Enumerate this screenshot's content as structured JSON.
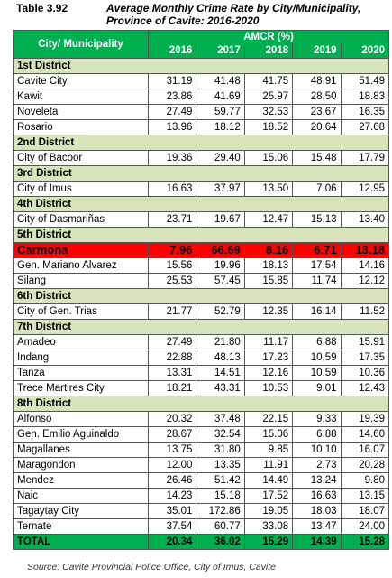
{
  "caption": {
    "number": "Table 3.92",
    "title": "Average Monthly Crime Rate by City/Municipality, Province of Cavite: 2016-2020"
  },
  "table": {
    "header": {
      "name": "City/ Municipality",
      "group": "AMCR (%)",
      "years": [
        "2016",
        "2017",
        "2018",
        "2019",
        "2020"
      ]
    },
    "rows": [
      {
        "label": "1st District"
      },
      {
        "label": "Cavite City",
        "values": [
          "31.19",
          "41.48",
          "41.75",
          "48.91",
          "51.49"
        ]
      },
      {
        "label": "Kawit",
        "values": [
          "23.86",
          "41.69",
          "25.97",
          "28.50",
          "18.83"
        ]
      },
      {
        "label": "Noveleta",
        "values": [
          "27.49",
          "59.77",
          "32.53",
          "23.67",
          "16.35"
        ]
      },
      {
        "label": "Rosario",
        "values": [
          "13.96",
          "18.12",
          "18.52",
          "20.64",
          "27.68"
        ]
      },
      {
        "label": "2nd District"
      },
      {
        "label": "City of Bacoor",
        "values": [
          "19.36",
          "29.40",
          "15.06",
          "15.48",
          "17.79"
        ]
      },
      {
        "label": "3rd District"
      },
      {
        "label": "City of Imus",
        "values": [
          "16.63",
          "37.97",
          "13.50",
          "7.06",
          "12.95"
        ]
      },
      {
        "label": "4th District"
      },
      {
        "label": "City of Dasmariñas",
        "values": [
          "23.71",
          "19.67",
          "12.47",
          "15.13",
          "13.40"
        ]
      },
      {
        "label": "5th District"
      },
      {
        "label": "Carmona",
        "values": [
          "7.96",
          "66.69",
          "8.16",
          "6.71",
          "13.18"
        ],
        "highlight": true
      },
      {
        "label": "Gen. Mariano Alvarez",
        "values": [
          "15.56",
          "19.96",
          "18.13",
          "17.54",
          "14.16"
        ]
      },
      {
        "label": "Silang",
        "values": [
          "25.53",
          "57.45",
          "15.85",
          "11.74",
          "12.12"
        ]
      },
      {
        "label": "6th District"
      },
      {
        "label": "City of Gen. Trias",
        "values": [
          "21.77",
          "52.79",
          "12.35",
          "16.14",
          "11.52"
        ]
      },
      {
        "label": "7th District"
      },
      {
        "label": "Amadeo",
        "values": [
          "27.49",
          "21.80",
          "11.17",
          "6.88",
          "15.91"
        ]
      },
      {
        "label": "Indang",
        "values": [
          "22.88",
          "48.13",
          "17.23",
          "10.59",
          "17.35"
        ]
      },
      {
        "label": "Tanza",
        "values": [
          "13.31",
          "14.51",
          "12.16",
          "10.59",
          "10.36"
        ]
      },
      {
        "label": "Trece Martires City",
        "values": [
          "18.21",
          "43.31",
          "10.53",
          "9.01",
          "12.43"
        ]
      },
      {
        "label": "8th District"
      },
      {
        "label": "Alfonso",
        "values": [
          "20.32",
          "37.48",
          "22.15",
          "9.33",
          "19.39"
        ]
      },
      {
        "label": "Gen. Emilio Aguinaldo",
        "values": [
          "28.67",
          "32.54",
          "15.06",
          "6.88",
          "14.60"
        ]
      },
      {
        "label": "Magallanes",
        "values": [
          "13.75",
          "31.80",
          "9.85",
          "10.10",
          "16.07"
        ]
      },
      {
        "label": "Maragondon",
        "values": [
          "12.00",
          "13.35",
          "11.91",
          "2.73",
          "20.28"
        ]
      },
      {
        "label": "Mendez",
        "values": [
          "26.46",
          "51.42",
          "14.49",
          "13.24",
          "9.80"
        ]
      },
      {
        "label": "Naic",
        "values": [
          "14.23",
          "15.18",
          "17.52",
          "16.63",
          "13.15"
        ]
      },
      {
        "label": "Tagaytay City",
        "values": [
          "35.01",
          "172.86",
          "19.05",
          "18.03",
          "18.07"
        ]
      },
      {
        "label": "Ternate",
        "values": [
          "37.54",
          "60.77",
          "33.08",
          "13.47",
          "24.00"
        ]
      }
    ],
    "total": {
      "label": "TOTAL",
      "values": [
        "20.34",
        "36.02",
        "15.29",
        "14.39",
        "15.28"
      ]
    }
  },
  "source": "Source: Cavite Provincial Police Office, City of Imus, Cavite"
}
